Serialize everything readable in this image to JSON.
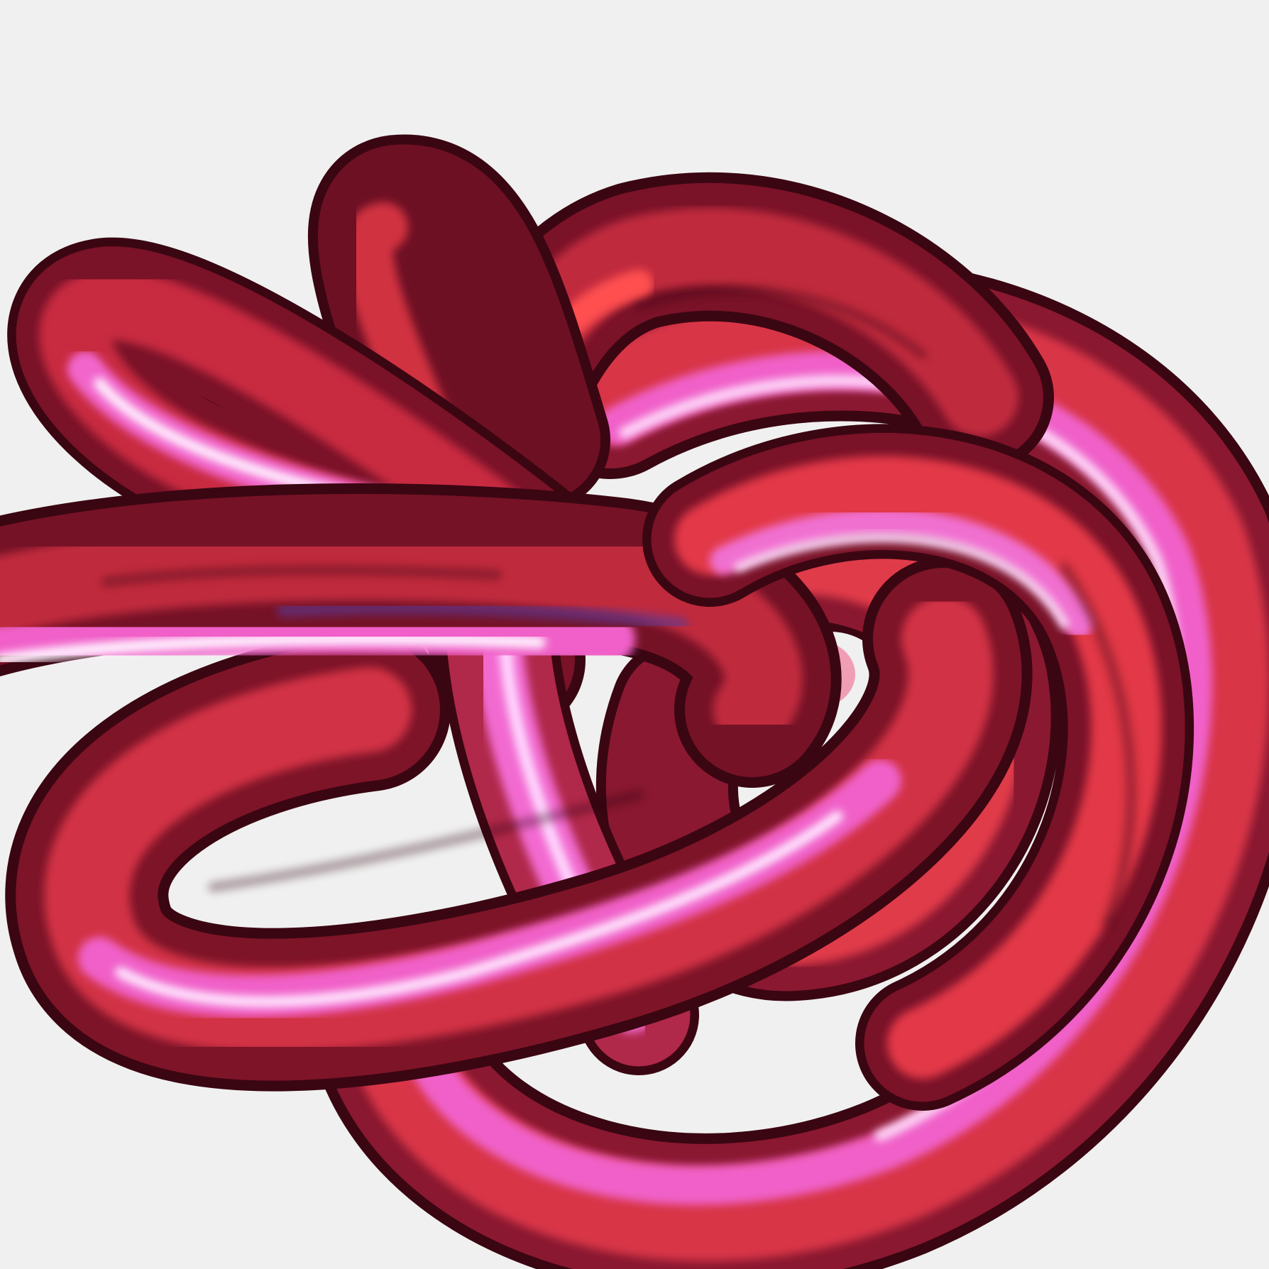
{
  "scene": {
    "subject": "torus-knot",
    "background_color": "#f0f0f0",
    "tube_colors": {
      "deep": "#3a0612",
      "dark": "#6a1023",
      "base": "#b82a3c",
      "bright": "#ff4a4a",
      "pink": "#f060c8",
      "highlight": "#ffe0ff",
      "violet": "#5a3a9a"
    }
  }
}
